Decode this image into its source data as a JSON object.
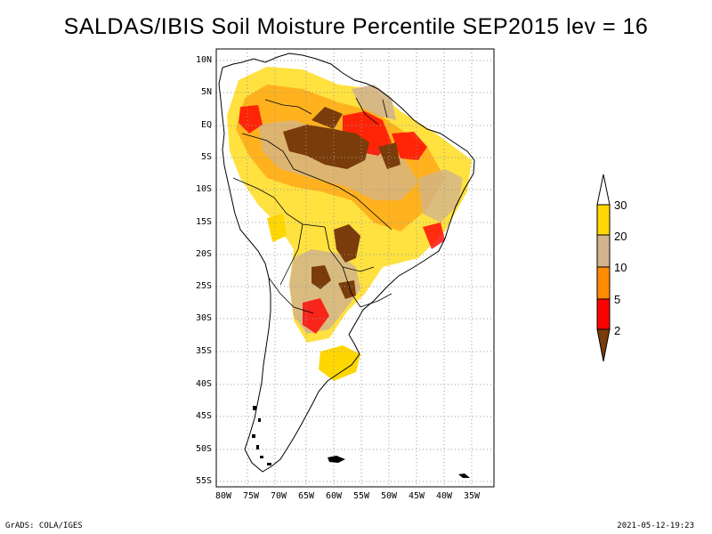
{
  "title": "SALDAS/IBIS Soil Moisture Percentile SEP2015 lev = 16",
  "map": {
    "lat_ticks": [
      "10N",
      "5N",
      "EQ",
      "5S",
      "10S",
      "15S",
      "20S",
      "25S",
      "30S",
      "35S",
      "40S",
      "45S",
      "50S",
      "55S"
    ],
    "lon_ticks": [
      "80W",
      "75W",
      "70W",
      "65W",
      "60W",
      "55W",
      "50W",
      "45W",
      "40W",
      "35W"
    ],
    "grid": true,
    "extent": {
      "lon": [
        -81,
        -33
      ],
      "lat": [
        -56,
        12
      ]
    }
  },
  "legend": {
    "labels": [
      "30",
      "20",
      "10",
      "5",
      "2"
    ],
    "classes": [
      {
        "color": "#7a3c0a",
        "range": "<2"
      },
      {
        "color": "#ff0000",
        "range": "2-5"
      },
      {
        "color": "#ff8c00",
        "range": "5-10"
      },
      {
        "color": "#d2b48c",
        "range": "10-20"
      },
      {
        "color": "#ffd700",
        "range": "20-30"
      },
      {
        "color": "#ffffff",
        "range": ">30"
      }
    ]
  },
  "footer": {
    "left": "GrADS: COLA/IGES",
    "right": "2021-05-12-19:23"
  }
}
